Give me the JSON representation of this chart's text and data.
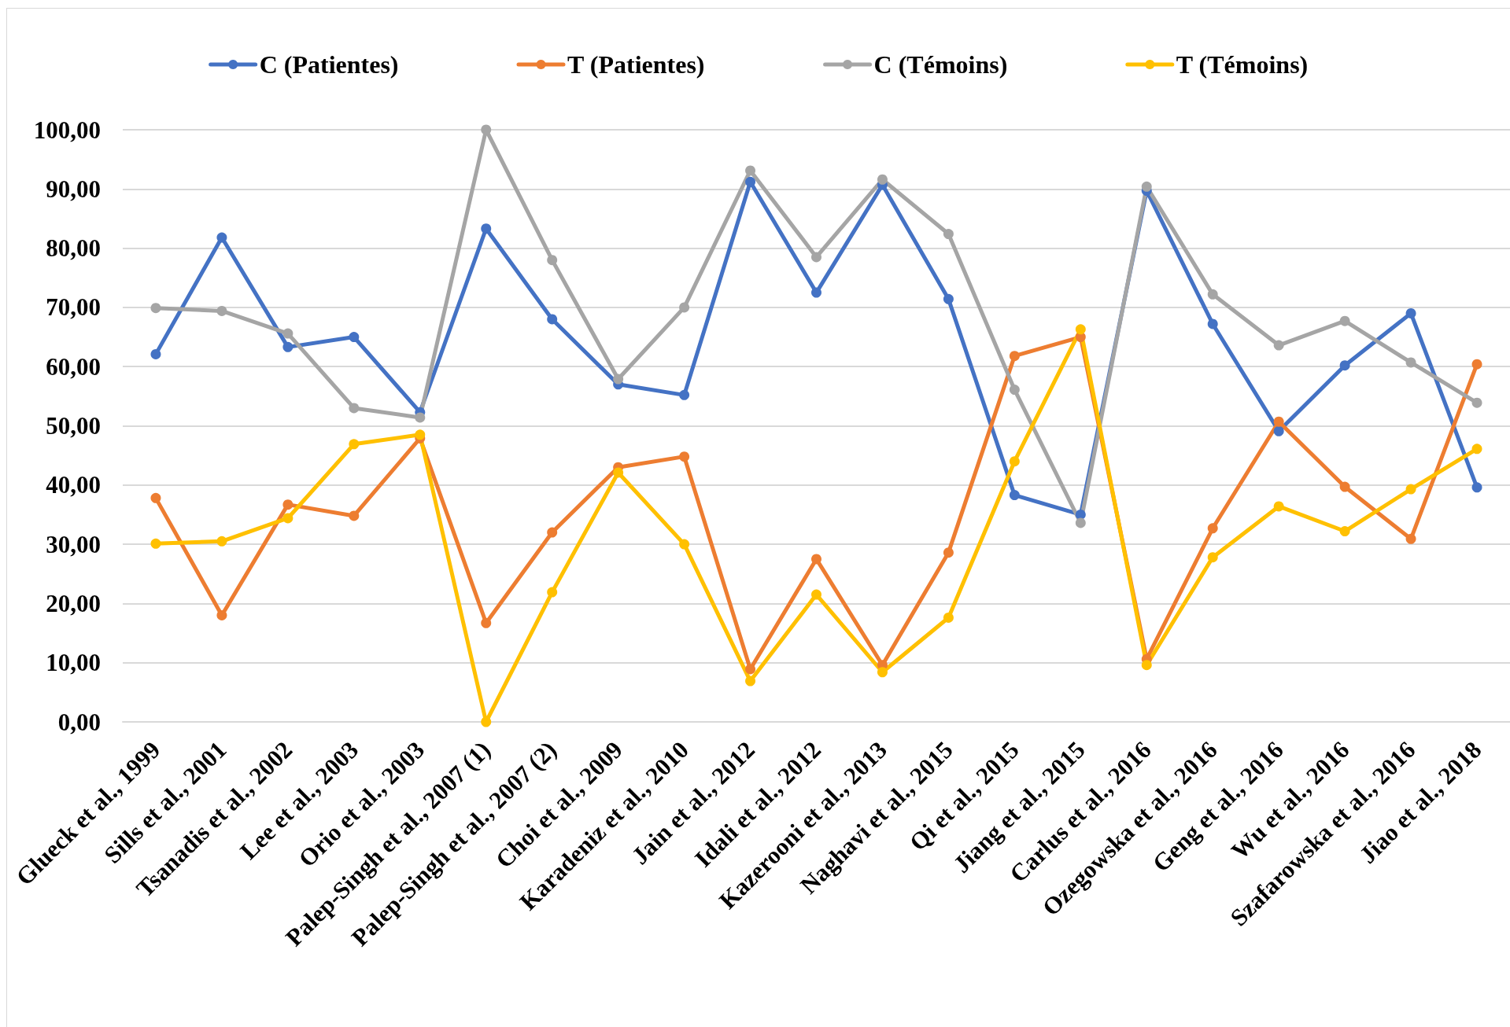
{
  "chart_data": {
    "type": "line",
    "categories": [
      "Glueck et al., 1999",
      "Sills et al., 2001",
      "Tsanadis et al., 2002",
      "Lee et al., 2003",
      "Orio et al., 2003",
      "Palep-Singh et al., 2007 (1)",
      "Palep-Singh et al., 2007 (2)",
      "Choi et al., 2009",
      "Karadeniz et al., 2010",
      "Jain et al., 2012",
      "Idali et al., 2012",
      "Kazerooni et al., 2013",
      "Naghavi et al., 2015",
      "Qi et al., 2015",
      "Jiang et al., 2015",
      "Carlus et al., 2016",
      "Ozegowska et al., 2016",
      "Geng et al., 2016",
      "Wu et al., 2016",
      "Szafarowska et al., 2016",
      "Jiao et al., 2018"
    ],
    "series": [
      {
        "name": "C (Patientes)",
        "color": "#4472c4",
        "values": [
          62.1,
          81.8,
          63.3,
          65.0,
          52.3,
          83.3,
          68.0,
          57.0,
          55.2,
          91.2,
          72.5,
          90.7,
          71.4,
          38.3,
          35.0,
          89.7,
          67.2,
          49.1,
          60.2,
          69.0,
          39.6
        ]
      },
      {
        "name": "T (Patientes)",
        "color": "#ed7d31",
        "values": [
          37.8,
          18.0,
          36.7,
          34.8,
          47.9,
          16.7,
          32.0,
          43.0,
          44.8,
          8.9,
          27.5,
          9.6,
          28.6,
          61.8,
          65.0,
          10.6,
          32.7,
          50.7,
          39.7,
          30.9,
          60.4
        ]
      },
      {
        "name": "C (Témoins)",
        "color": "#a5a5a5",
        "values": [
          69.9,
          69.4,
          65.6,
          53.0,
          51.4,
          100.0,
          78.0,
          57.9,
          70.0,
          93.1,
          78.5,
          91.6,
          82.4,
          56.1,
          33.6,
          90.4,
          72.2,
          63.6,
          67.7,
          60.7,
          53.9
        ]
      },
      {
        "name": "T (Témoins)",
        "color": "#ffc000",
        "values": [
          30.1,
          30.5,
          34.4,
          46.9,
          48.5,
          0.0,
          21.9,
          42.1,
          30.0,
          6.9,
          21.5,
          8.4,
          17.6,
          44.0,
          66.3,
          9.6,
          27.8,
          36.4,
          32.2,
          39.3,
          46.1
        ]
      }
    ],
    "ylim": [
      0,
      100
    ],
    "yticks": [
      {
        "value": 0,
        "label": "0,00"
      },
      {
        "value": 10,
        "label": "10,00"
      },
      {
        "value": 20,
        "label": "20,00"
      },
      {
        "value": 30,
        "label": "30,00"
      },
      {
        "value": 40,
        "label": "40,00"
      },
      {
        "value": 50,
        "label": "50,00"
      },
      {
        "value": 60,
        "label": "60,00"
      },
      {
        "value": 70,
        "label": "70,00"
      },
      {
        "value": 80,
        "label": "80,00"
      },
      {
        "value": 90,
        "label": "90,00"
      },
      {
        "value": 100,
        "label": "100,00"
      }
    ],
    "grid": "y",
    "legend": "top",
    "marker": "circle",
    "line_style": "solid"
  }
}
